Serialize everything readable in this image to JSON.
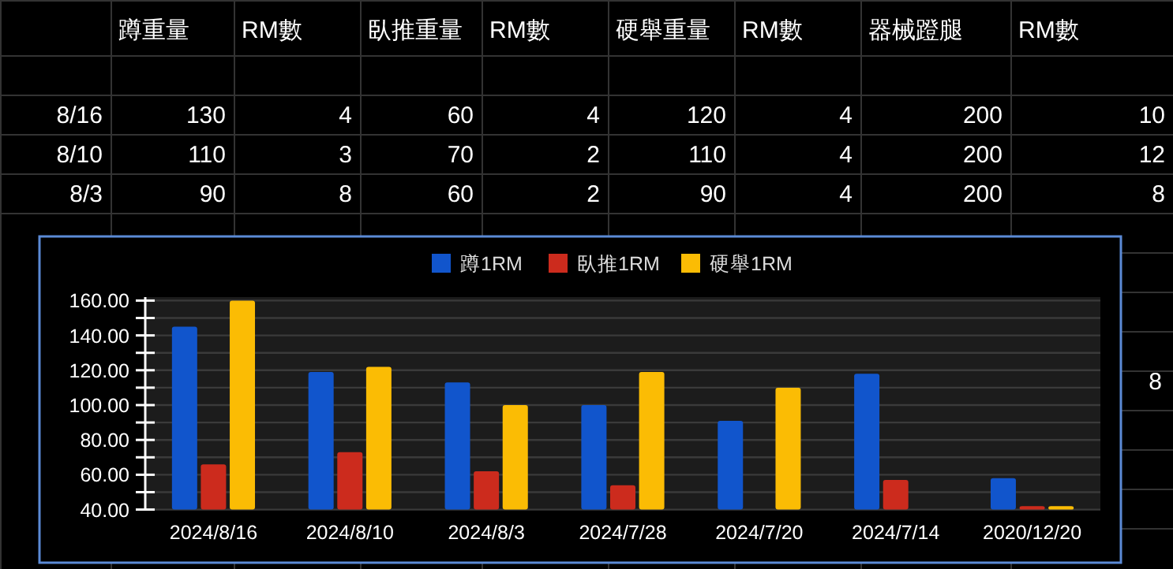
{
  "chart_data": [
    {
      "type": "other",
      "categories": [
        "蹲重量",
        "RM數",
        "臥推重量",
        "RM數",
        "硬舉重量",
        "RM數",
        "器械蹬腿",
        "RM數"
      ],
      "y_categories": [
        "8/16",
        "8/10",
        "8/3"
      ],
      "cell_labels": [
        [
          "130",
          "4",
          "60",
          "4",
          "120",
          "4",
          "200",
          "10"
        ],
        [
          "110",
          "3",
          "70",
          "2",
          "110",
          "4",
          "200",
          "12"
        ],
        [
          "90",
          "8",
          "60",
          "2",
          "90",
          "4",
          "200",
          "8"
        ]
      ],
      "annotations": [
        "8"
      ]
    },
    {
      "type": "bar",
      "categories": [
        "2024/8/16",
        "2024/8/10",
        "2024/8/3",
        "2024/7/28",
        "2024/7/20",
        "2024/7/14",
        "2020/12/20"
      ],
      "series": [
        {
          "name": "蹲1RM",
          "color": "#1155cc",
          "values": [
            145,
            119,
            113,
            100,
            91,
            118,
            58
          ]
        },
        {
          "name": "臥推1RM",
          "color": "#cc2b1d",
          "values": [
            66,
            73,
            62,
            54,
            null,
            57,
            42
          ]
        },
        {
          "name": "硬舉1RM",
          "color": "#fbbc04",
          "values": [
            160,
            122,
            100,
            119,
            110,
            null,
            42
          ]
        }
      ],
      "ylim": [
        40,
        162
      ],
      "yticks": [
        {
          "value": 40,
          "label": "40.00"
        },
        {
          "value": 50,
          "label": null
        },
        {
          "value": 60,
          "label": "60.00"
        },
        {
          "value": 70,
          "label": null
        },
        {
          "value": 80,
          "label": "80.00"
        },
        {
          "value": 90,
          "label": null
        },
        {
          "value": 100,
          "label": "100.00"
        },
        {
          "value": 110,
          "label": null
        },
        {
          "value": 120,
          "label": "120.00"
        },
        {
          "value": 130,
          "label": null
        },
        {
          "value": 140,
          "label": "140.00"
        },
        {
          "value": 150,
          "label": null
        },
        {
          "value": 160,
          "label": "160.00"
        }
      ],
      "grid": "y",
      "legend": "top"
    }
  ]
}
